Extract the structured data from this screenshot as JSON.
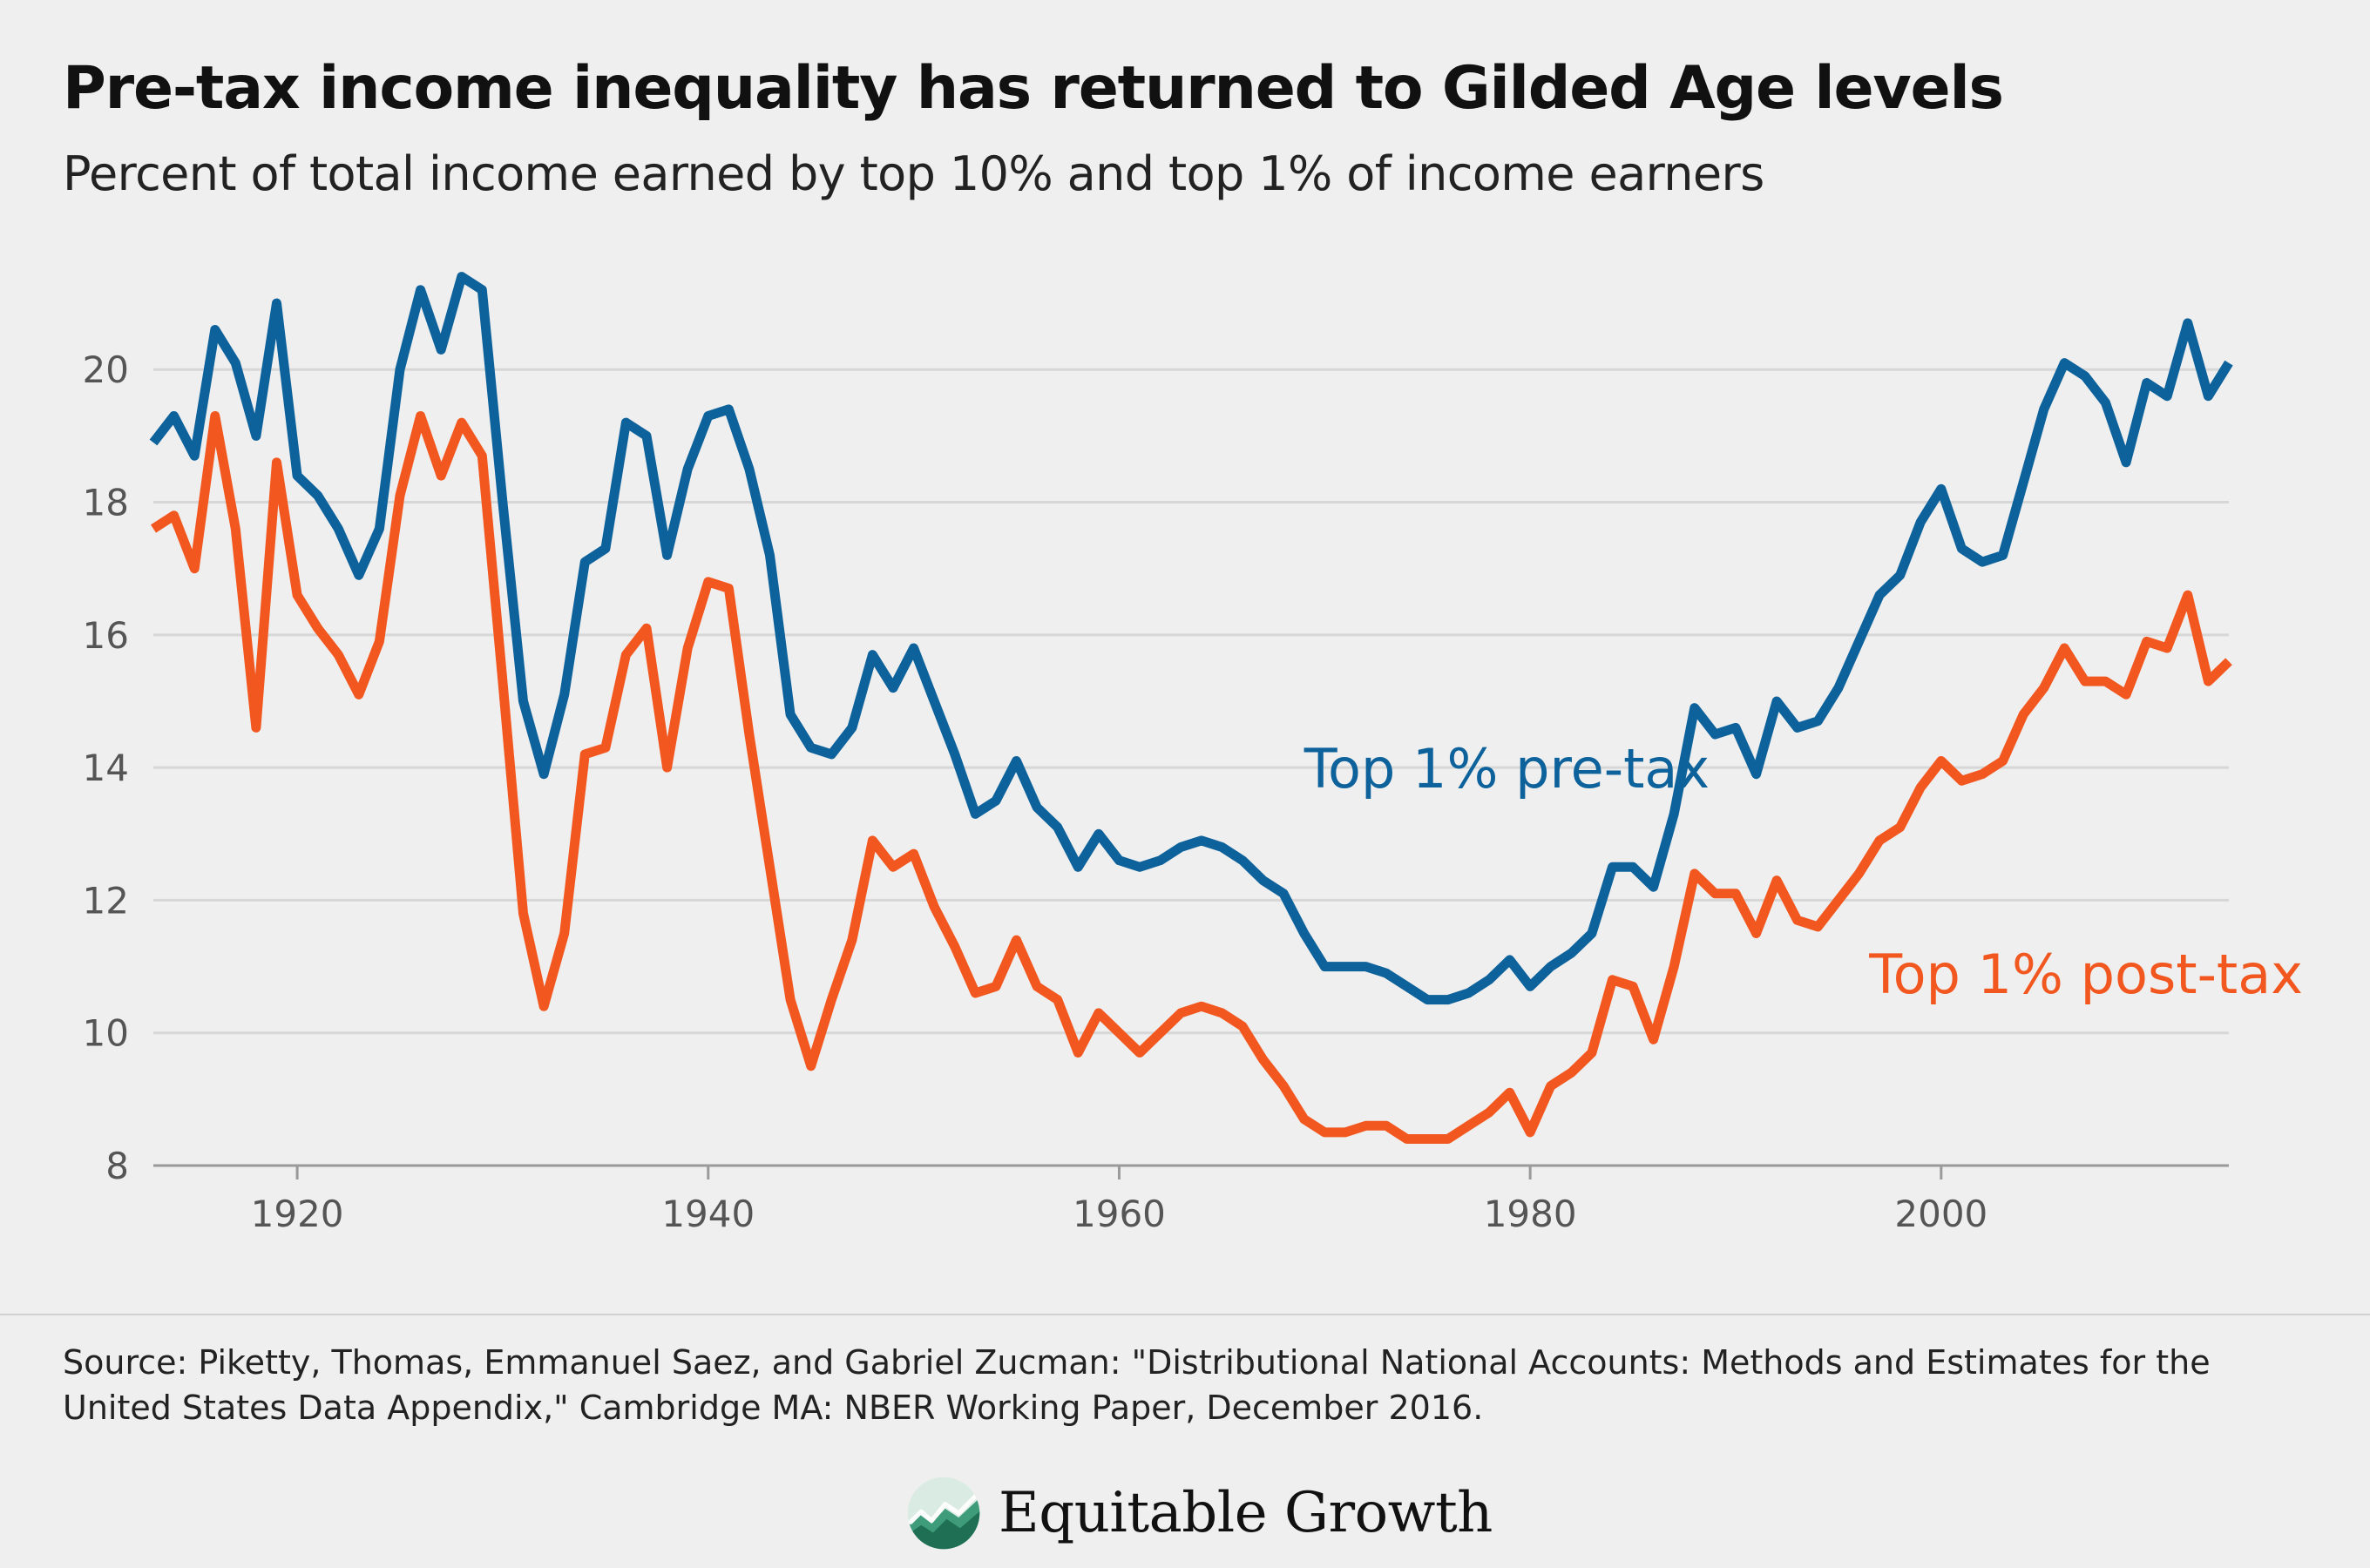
{
  "title": "Pre-tax income inequality has returned to Gilded Age levels",
  "subtitle": "Percent of total income earned by top 10% and top 1% of income earners",
  "source": "Source: Piketty, Thomas, Emmanuel Saez, and Gabriel Zucman: \"Distributional National Accounts: Methods and Estimates for the United States Data Appendix,\" Cambridge MA: NBER Working Paper, December 2016.",
  "brand": {
    "name": "Equitable Growth",
    "logo_icon": "growth-chart-circle-icon"
  },
  "colors": {
    "pre_tax": "#0e629b",
    "post_tax": "#f2571f",
    "grid": "#d7d7d7",
    "tick": "#555555"
  },
  "chart_data": {
    "type": "line",
    "title": "",
    "xlabel": "",
    "ylabel": "",
    "xlim": [
      1913,
      2014
    ],
    "ylim": [
      8,
      21.5
    ],
    "xticks": [
      1920,
      1940,
      1960,
      1980,
      2000
    ],
    "yticks": [
      8,
      10,
      12,
      14,
      16,
      18,
      20
    ],
    "grid": "horizontal",
    "legend": "inline labels",
    "x": [
      1913,
      1914,
      1915,
      1916,
      1917,
      1918,
      1919,
      1920,
      1921,
      1922,
      1923,
      1924,
      1925,
      1926,
      1927,
      1928,
      1929,
      1930,
      1931,
      1932,
      1933,
      1934,
      1935,
      1936,
      1937,
      1938,
      1939,
      1940,
      1941,
      1942,
      1943,
      1944,
      1945,
      1946,
      1947,
      1948,
      1949,
      1950,
      1951,
      1952,
      1953,
      1954,
      1955,
      1956,
      1957,
      1958,
      1959,
      1960,
      1961,
      1962,
      1963,
      1964,
      1965,
      1966,
      1967,
      1968,
      1969,
      1970,
      1971,
      1972,
      1973,
      1974,
      1975,
      1976,
      1977,
      1978,
      1979,
      1980,
      1981,
      1982,
      1983,
      1984,
      1985,
      1986,
      1987,
      1988,
      1989,
      1990,
      1991,
      1992,
      1993,
      1994,
      1995,
      1996,
      1997,
      1998,
      1999,
      2000,
      2001,
      2002,
      2003,
      2004,
      2005,
      2006,
      2007,
      2008,
      2009,
      2010,
      2011,
      2012,
      2013,
      2014
    ],
    "series": [
      {
        "name": "Top 1% pre-tax",
        "color": "#0e629b",
        "values": [
          18.9,
          19.3,
          18.7,
          20.6,
          20.1,
          19.0,
          21.0,
          18.4,
          18.1,
          17.6,
          16.9,
          17.6,
          20.0,
          21.2,
          20.3,
          21.4,
          21.2,
          18.0,
          15.0,
          13.9,
          15.1,
          17.1,
          17.3,
          19.2,
          19.0,
          17.2,
          18.5,
          19.3,
          19.4,
          18.5,
          17.2,
          14.8,
          14.3,
          14.2,
          14.6,
          15.7,
          15.2,
          15.8,
          15.0,
          14.2,
          13.3,
          13.5,
          14.1,
          13.4,
          13.1,
          12.5,
          13.0,
          12.6,
          12.5,
          12.6,
          12.8,
          12.9,
          12.8,
          12.6,
          12.3,
          12.1,
          11.5,
          11.0,
          11.0,
          11.0,
          10.9,
          10.7,
          10.5,
          10.5,
          10.6,
          10.8,
          11.1,
          10.7,
          11.0,
          11.2,
          11.5,
          12.5,
          12.5,
          12.2,
          13.3,
          14.9,
          14.5,
          14.6,
          13.9,
          15.0,
          14.6,
          14.7,
          15.2,
          15.9,
          16.6,
          16.9,
          17.7,
          18.2,
          17.3,
          17.1,
          17.2,
          18.3,
          19.4,
          20.1,
          19.9,
          19.5,
          18.6,
          19.8,
          19.6,
          20.7,
          19.6,
          20.1
        ]
      },
      {
        "name": "Top 1% post-tax",
        "color": "#f2571f",
        "values": [
          17.6,
          17.8,
          17.0,
          19.3,
          17.6,
          14.6,
          18.6,
          16.6,
          16.1,
          15.7,
          15.1,
          15.9,
          18.1,
          19.3,
          18.4,
          19.2,
          18.7,
          15.3,
          11.8,
          10.4,
          11.5,
          14.2,
          14.3,
          15.7,
          16.1,
          14.0,
          15.8,
          16.8,
          16.7,
          14.5,
          12.5,
          10.5,
          9.5,
          10.5,
          11.4,
          12.9,
          12.5,
          12.7,
          11.9,
          11.3,
          10.6,
          10.7,
          11.4,
          10.7,
          10.5,
          9.7,
          10.3,
          10.0,
          9.7,
          10.0,
          10.3,
          10.4,
          10.3,
          10.1,
          9.6,
          9.2,
          8.7,
          8.5,
          8.5,
          8.6,
          8.6,
          8.4,
          8.4,
          8.4,
          8.6,
          8.8,
          9.1,
          8.5,
          9.2,
          9.4,
          9.7,
          10.8,
          10.7,
          9.9,
          11.0,
          12.4,
          12.1,
          12.1,
          11.5,
          12.3,
          11.7,
          11.6,
          12.0,
          12.4,
          12.9,
          13.1,
          13.7,
          14.1,
          13.8,
          13.9,
          14.1,
          14.8,
          15.2,
          15.8,
          15.3,
          15.3,
          15.1,
          15.9,
          15.8,
          16.6,
          15.3,
          15.6
        ]
      }
    ],
    "annotations": [
      {
        "text": "Top 1% pre-tax",
        "x": 1969,
        "y": 13.7,
        "color": "#0e629b"
      },
      {
        "text": "Top 1% post-tax",
        "x": 1996.5,
        "y": 10.6,
        "color": "#f2571f"
      }
    ]
  }
}
